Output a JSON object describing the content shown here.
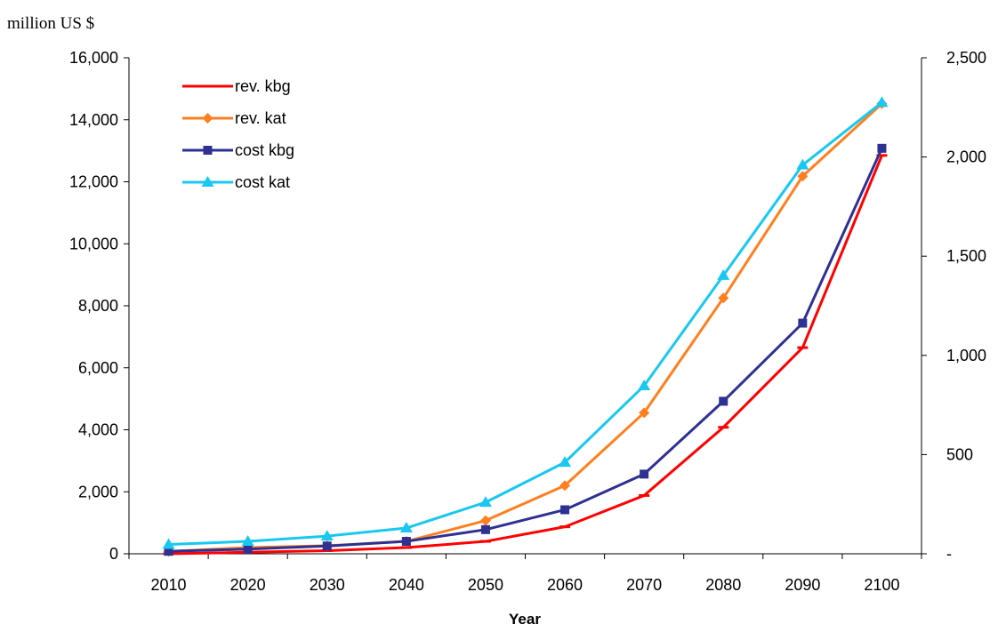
{
  "chart_data": {
    "type": "line",
    "unit_label": "million US $",
    "xlabel": "Year",
    "categories": [
      "2010",
      "2020",
      "2030",
      "2040",
      "2050",
      "2060",
      "2070",
      "2080",
      "2090",
      "2100"
    ],
    "y_left": {
      "ylim": [
        0,
        16000
      ],
      "ticks": [
        0,
        2000,
        4000,
        6000,
        8000,
        10000,
        12000,
        14000,
        16000
      ],
      "tick_labels": [
        "0",
        "2,000",
        "4,000",
        "6,000",
        "8,000",
        "10,000",
        "12,000",
        "14,000",
        "16,000"
      ]
    },
    "y_right": {
      "ylim": [
        0,
        2500
      ],
      "ticks": [
        0,
        500,
        1000,
        1500,
        2000,
        2500
      ],
      "tick_labels": [
        "-",
        "500",
        "1,000",
        "1,500",
        "2,000",
        "2,500"
      ]
    },
    "grid": false,
    "legend_position": "top-left",
    "series": [
      {
        "name": "rev. kbg",
        "color": "#ff0000",
        "marker": "dash",
        "values": [
          0,
          50,
          100,
          200,
          400,
          870,
          1880,
          4080,
          6650,
          12850
        ]
      },
      {
        "name": "rev. kat",
        "color": "#ff7f1e",
        "marker": "diamond",
        "values": [
          80,
          200,
          260,
          400,
          1070,
          2200,
          4550,
          8250,
          12180,
          14520
        ]
      },
      {
        "name": "cost kbg",
        "color": "#2e3192",
        "marker": "square",
        "values": [
          80,
          150,
          250,
          400,
          780,
          1420,
          2570,
          4920,
          7440,
          13080
        ]
      },
      {
        "name": "cost kat",
        "color": "#18c8f0",
        "marker": "triangle",
        "values": [
          300,
          400,
          570,
          830,
          1660,
          2950,
          5420,
          8980,
          12540,
          14560
        ]
      }
    ]
  }
}
